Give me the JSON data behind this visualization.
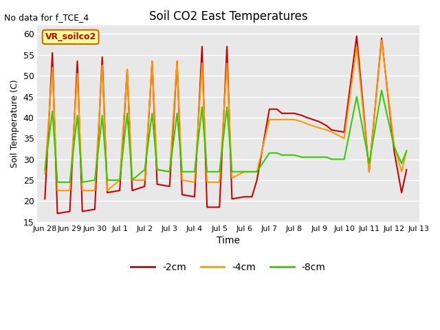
{
  "title": "Soil CO2 East Temperatures",
  "subtitle": "No data for f_TCE_4",
  "xlabel": "Time",
  "ylabel": "Soil Temperature (C)",
  "ylim": [
    15,
    62
  ],
  "yticks": [
    15,
    20,
    25,
    30,
    35,
    40,
    45,
    50,
    55,
    60
  ],
  "bg_color": "#e8e8e8",
  "line_colors": {
    "2cm": "#cc0000",
    "4cm": "#ff9900",
    "8cm": "#33cc00"
  },
  "x_2cm": [
    0,
    0.3,
    0.5,
    1.0,
    1.3,
    1.5,
    2.0,
    2.3,
    2.5,
    3.0,
    3.3,
    3.5,
    4.0,
    4.3,
    4.5,
    5.0,
    5.3,
    5.5,
    6.0,
    6.3,
    6.5,
    7.0,
    7.3,
    7.5,
    8.0,
    8.3,
    8.5,
    9.0,
    9.3,
    9.5,
    10.0,
    10.3,
    10.5,
    11.0,
    11.3,
    11.5,
    12.0,
    12.5,
    13.0,
    13.5,
    14.0,
    14.3,
    14.5
  ],
  "y_2cm": [
    20.5,
    55.5,
    17.0,
    17.5,
    53.5,
    17.5,
    18.0,
    54.5,
    22.0,
    22.5,
    51.5,
    22.5,
    23.5,
    53.5,
    24.0,
    23.5,
    53.5,
    21.5,
    21.0,
    57.0,
    18.5,
    18.5,
    57.0,
    20.5,
    21.0,
    21.0,
    25.0,
    42.0,
    42.0,
    41.0,
    41.0,
    40.5,
    40.0,
    39.0,
    38.0,
    37.0,
    36.5,
    59.5,
    27.0,
    59.0,
    32.0,
    22.0,
    27.5
  ],
  "x_4cm": [
    0,
    0.3,
    0.5,
    1.0,
    1.3,
    1.5,
    2.0,
    2.3,
    2.5,
    3.0,
    3.3,
    3.5,
    4.0,
    4.3,
    4.5,
    5.0,
    5.3,
    5.5,
    6.0,
    6.3,
    6.5,
    7.0,
    7.3,
    7.5,
    8.0,
    8.3,
    8.5,
    9.0,
    9.3,
    9.5,
    10.0,
    10.3,
    10.5,
    11.0,
    11.3,
    11.5,
    12.0,
    12.5,
    13.0,
    13.5,
    14.0,
    14.3,
    14.5
  ],
  "y_4cm": [
    26.5,
    52.0,
    22.5,
    22.5,
    50.5,
    22.5,
    22.5,
    52.5,
    22.5,
    25.0,
    51.5,
    25.0,
    25.0,
    53.5,
    27.5,
    27.0,
    53.5,
    25.0,
    24.5,
    53.0,
    24.5,
    24.5,
    53.0,
    25.5,
    27.0,
    27.0,
    27.0,
    39.5,
    39.5,
    39.5,
    39.5,
    39.0,
    38.5,
    37.5,
    37.0,
    36.5,
    35.0,
    57.0,
    27.0,
    58.5,
    33.5,
    27.0,
    32.0
  ],
  "x_8cm": [
    0,
    0.3,
    0.5,
    1.0,
    1.3,
    1.5,
    2.0,
    2.3,
    2.5,
    3.0,
    3.3,
    3.5,
    4.0,
    4.3,
    4.5,
    5.0,
    5.3,
    5.5,
    6.0,
    6.3,
    6.5,
    7.0,
    7.3,
    7.5,
    8.0,
    8.3,
    8.5,
    9.0,
    9.3,
    9.5,
    10.0,
    10.3,
    10.5,
    11.0,
    11.3,
    11.5,
    12.0,
    12.5,
    13.0,
    13.5,
    14.0,
    14.3,
    14.5
  ],
  "y_8cm": [
    27.5,
    41.5,
    24.5,
    24.5,
    40.5,
    24.5,
    25.0,
    40.5,
    25.0,
    25.0,
    41.0,
    25.0,
    27.5,
    41.0,
    27.5,
    27.0,
    41.0,
    27.0,
    27.0,
    42.5,
    27.0,
    27.0,
    42.5,
    27.0,
    27.0,
    27.0,
    27.0,
    31.5,
    31.5,
    31.0,
    31.0,
    30.5,
    30.5,
    30.5,
    30.5,
    30.0,
    30.0,
    45.0,
    29.0,
    46.5,
    33.0,
    29.0,
    32.0
  ],
  "xtick_positions": [
    0,
    1,
    2,
    3,
    4,
    5,
    6,
    7,
    8,
    9,
    10,
    11,
    12,
    13,
    14,
    15
  ],
  "xtick_labels": [
    "Jun 28",
    "Jun 29",
    "Jun 30",
    "Jul 1",
    "Jul 2",
    "Jul 3",
    "Jul 4",
    "Jul 5",
    "Jul 6",
    "Jul 7",
    "Jul 8",
    "Jul 9",
    "Jul 10",
    "Jul 11",
    "Jul 12",
    "Jul 13"
  ],
  "legend_entries": [
    "-2cm",
    "-4cm",
    "-8cm"
  ],
  "legend_colors": [
    "#cc0000",
    "#ff9900",
    "#33cc00"
  ]
}
